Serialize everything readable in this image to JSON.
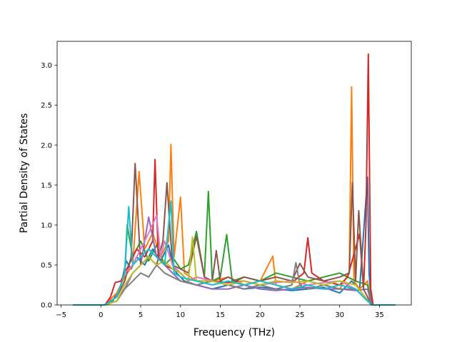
{
  "chart_data": {
    "type": "line",
    "title": "",
    "xlabel": "Frequency (THz)",
    "ylabel": "Partial Density of States",
    "xlim": [
      -5.5,
      39
    ],
    "ylim": [
      0,
      3.3
    ],
    "x_ticks": [
      -5,
      0,
      5,
      10,
      15,
      20,
      25,
      30,
      35
    ],
    "x_tick_labels": [
      "−5",
      "0",
      "5",
      "10",
      "15",
      "20",
      "25",
      "30",
      "35"
    ],
    "y_ticks": [
      0,
      0.5,
      1.0,
      1.5,
      2.0,
      2.5,
      3.0
    ],
    "y_tick_labels": [
      "0.0",
      "0.5",
      "1.0",
      "1.5",
      "2.0",
      "2.5",
      "3.0"
    ],
    "grid": false,
    "legend": "none",
    "colors": [
      "#1f77b4",
      "#ff7f0e",
      "#2ca02c",
      "#d62728",
      "#9467bd",
      "#8c564b",
      "#e377c2",
      "#7f7f7f",
      "#bcbd22",
      "#17becf"
    ],
    "series": [
      {
        "x": [
          -3.5,
          0.5,
          1.5,
          2.5,
          3.2,
          3.8,
          4.5,
          5.5,
          6.5,
          7.5,
          8.5,
          9.0,
          9.5,
          10.5,
          12,
          14,
          16,
          18,
          20,
          22,
          24,
          26,
          28,
          30,
          31.5,
          32.5,
          33.5,
          33.7,
          34,
          37
        ],
        "y": [
          0,
          0,
          0.05,
          0.25,
          0.55,
          0.45,
          0.6,
          0.5,
          0.7,
          0.55,
          0.75,
          0.5,
          0.4,
          0.3,
          0.25,
          0.2,
          0.25,
          0.2,
          0.22,
          0.2,
          0.18,
          0.2,
          0.22,
          0.15,
          0.3,
          0.2,
          1.6,
          0.4,
          0,
          0
        ]
      },
      {
        "x": [
          -3.5,
          0.5,
          2,
          3,
          4,
          4.8,
          5.5,
          6.5,
          7.5,
          8.5,
          8.8,
          9.2,
          10,
          10.5,
          12,
          14,
          16,
          18,
          20,
          21.6,
          22,
          24,
          26,
          28,
          30,
          31.2,
          31.5,
          31.8,
          32.5,
          33.5,
          34,
          37
        ],
        "y": [
          0,
          0,
          0.15,
          0.35,
          0.5,
          1.67,
          0.7,
          0.9,
          0.6,
          0.8,
          2.01,
          0.6,
          1.35,
          0.4,
          0.3,
          0.3,
          0.35,
          0.25,
          0.3,
          0.61,
          0.25,
          0.2,
          0.3,
          0.25,
          0.2,
          0.4,
          2.73,
          0.3,
          0.2,
          0.3,
          0,
          0
        ]
      },
      {
        "x": [
          -3.5,
          0.5,
          2,
          3,
          3.3,
          4,
          5,
          6,
          7,
          8,
          9,
          10,
          11,
          12,
          13,
          13.5,
          14,
          15,
          15.8,
          16.5,
          18,
          20,
          22,
          24,
          26,
          28,
          30,
          32,
          33.5,
          34,
          37
        ],
        "y": [
          0,
          0,
          0.1,
          0.4,
          1.0,
          0.6,
          0.8,
          0.55,
          0.75,
          0.5,
          0.6,
          0.45,
          0.5,
          0.92,
          0.35,
          1.42,
          0.3,
          0.35,
          0.88,
          0.3,
          0.35,
          0.3,
          0.4,
          0.35,
          0.3,
          0.35,
          0.4,
          0.3,
          0.25,
          0,
          0
        ]
      },
      {
        "x": [
          -3.5,
          0.5,
          1.2,
          1.8,
          2.5,
          3.5,
          4.5,
          5.5,
          6.5,
          6.8,
          7.2,
          8,
          9,
          10,
          11,
          12,
          14,
          16,
          18,
          20,
          22,
          24,
          25.5,
          26,
          26.5,
          28,
          30,
          31,
          32.5,
          33,
          33.3,
          33.6,
          33.9,
          34.2,
          37
        ],
        "y": [
          0,
          0,
          0.1,
          0.28,
          0.3,
          0.5,
          0.7,
          0.6,
          0.8,
          1.82,
          0.6,
          0.5,
          0.45,
          0.4,
          0.3,
          0.35,
          0.3,
          0.28,
          0.3,
          0.25,
          0.3,
          0.28,
          0.4,
          0.84,
          0.4,
          0.3,
          0.25,
          0.35,
          0.89,
          0.2,
          1.0,
          3.14,
          0.2,
          0,
          0
        ]
      },
      {
        "x": [
          -3.5,
          0.5,
          2,
          3,
          4,
          5,
          6,
          7,
          8,
          9,
          10,
          12,
          14,
          16,
          18,
          20,
          22,
          24,
          26,
          28,
          30,
          32,
          33.5,
          34,
          37
        ],
        "y": [
          0,
          0,
          0.05,
          0.2,
          0.4,
          0.5,
          1.1,
          0.6,
          0.5,
          0.4,
          0.3,
          0.25,
          0.2,
          0.2,
          0.25,
          0.2,
          0.18,
          0.2,
          0.22,
          0.2,
          0.2,
          0.18,
          0.2,
          0,
          0
        ]
      },
      {
        "x": [
          -3.5,
          0.5,
          2,
          3,
          3.8,
          4.3,
          5,
          6,
          7,
          7.8,
          8.3,
          9,
          10,
          11,
          12,
          13,
          14,
          14.5,
          15,
          16,
          17,
          18,
          20,
          22,
          24,
          25,
          26,
          28,
          30,
          31.2,
          31.6,
          32,
          32.4,
          33,
          34,
          37
        ],
        "y": [
          0,
          0,
          0.1,
          0.3,
          0.6,
          1.77,
          0.5,
          0.6,
          0.5,
          0.8,
          1.53,
          0.5,
          0.45,
          0.4,
          0.86,
          0.35,
          0.3,
          0.68,
          0.3,
          0.35,
          0.3,
          0.35,
          0.3,
          0.35,
          0.3,
          0.52,
          0.35,
          0.3,
          0.35,
          0.4,
          1.53,
          0.3,
          1.18,
          0.2,
          0,
          0
        ]
      },
      {
        "x": [
          -3.5,
          0.5,
          2,
          3,
          4,
          5,
          6,
          7,
          7.5,
          8,
          9,
          10,
          11,
          12,
          14,
          16,
          18,
          20,
          22,
          24,
          26,
          28,
          30,
          32,
          34,
          37
        ],
        "y": [
          0,
          0,
          0.1,
          0.4,
          0.5,
          0.7,
          0.9,
          1.12,
          0.6,
          0.8,
          0.5,
          0.4,
          0.3,
          0.35,
          0.3,
          0.25,
          0.3,
          0.25,
          0.28,
          0.3,
          0.25,
          0.28,
          0.3,
          0.2,
          0,
          0
        ]
      },
      {
        "x": [
          -3.5,
          0.5,
          2,
          3,
          4,
          5,
          6,
          7,
          8,
          9,
          10,
          12,
          14,
          16,
          18,
          20,
          22,
          24,
          24.5,
          25,
          26,
          28,
          30,
          32,
          34,
          37
        ],
        "y": [
          0,
          0,
          0.05,
          0.2,
          0.3,
          0.4,
          0.35,
          0.5,
          0.4,
          0.35,
          0.3,
          0.25,
          0.3,
          0.25,
          0.2,
          0.25,
          0.2,
          0.25,
          0.53,
          0.25,
          0.2,
          0.25,
          0.2,
          0.2,
          0,
          0
        ]
      },
      {
        "x": [
          -3.5,
          0.5,
          2,
          3,
          4,
          5,
          6,
          7,
          8,
          9,
          10,
          11,
          11.5,
          12,
          14,
          16,
          18,
          20,
          22,
          24,
          26,
          28,
          30,
          32,
          34,
          37
        ],
        "y": [
          0,
          0,
          0.05,
          0.25,
          0.4,
          0.5,
          0.6,
          0.5,
          0.55,
          0.45,
          0.4,
          0.3,
          0.85,
          0.3,
          0.3,
          0.25,
          0.3,
          0.25,
          0.3,
          0.28,
          0.3,
          0.25,
          0.3,
          0.25,
          0,
          0
        ]
      },
      {
        "x": [
          -3.5,
          0.5,
          2,
          3,
          3.5,
          4,
          5,
          6,
          7,
          8,
          8.8,
          9.2,
          10,
          12,
          14,
          16,
          18,
          20,
          22,
          24,
          26,
          28,
          30,
          32,
          34,
          37
        ],
        "y": [
          0,
          0,
          0.1,
          0.4,
          1.23,
          0.5,
          0.6,
          0.7,
          0.6,
          0.5,
          1.3,
          0.4,
          0.35,
          0.3,
          0.25,
          0.3,
          0.25,
          0.3,
          0.25,
          0.2,
          0.25,
          0.2,
          0.25,
          0.2,
          0,
          0
        ]
      }
    ]
  }
}
